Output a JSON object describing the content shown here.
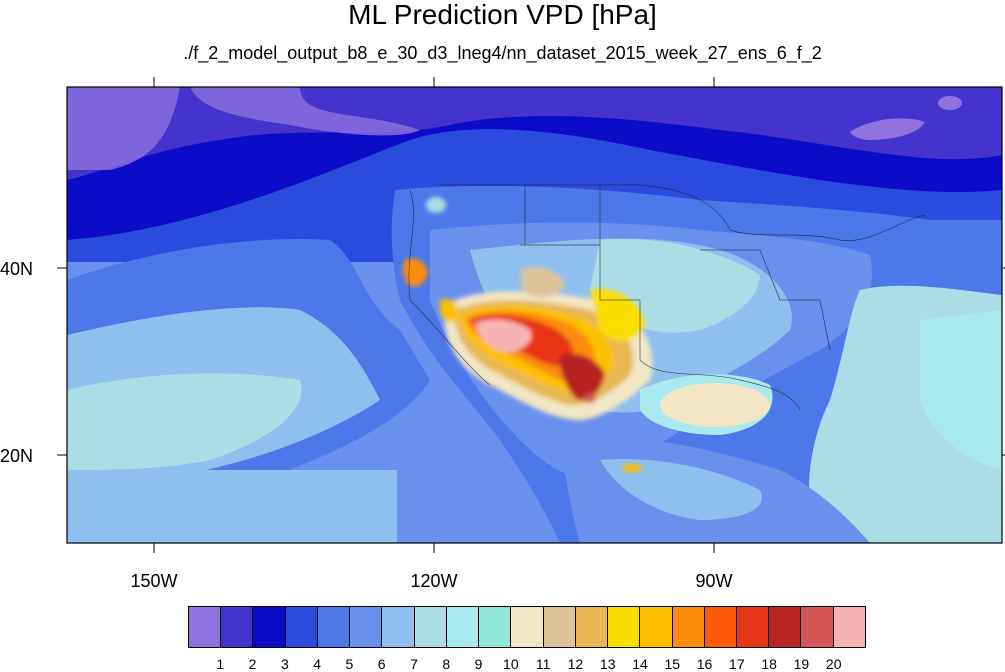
{
  "title": "ML Prediction VPD [hPa]",
  "subtitle": "./f_2_model_output_b8_e_30_d3_lneg4/nn_dataset_2015_week_27_ens_6_f_2",
  "map": {
    "variable": "VPD",
    "units": "hPa",
    "projection": "cylindrical equidistant",
    "lon_range": [
      -159,
      -60
    ],
    "lat_range": [
      10,
      59
    ],
    "lon_ticks": [
      {
        "label": "150W",
        "value": -150
      },
      {
        "label": "120W",
        "value": -120
      },
      {
        "label": "90W",
        "value": -90
      }
    ],
    "lat_ticks": [
      {
        "label": "40N",
        "value": 40
      },
      {
        "label": "20N",
        "value": 20
      }
    ]
  },
  "colorbar": {
    "labels": [
      "1",
      "2",
      "3",
      "4",
      "5",
      "6",
      "7",
      "8",
      "9",
      "10",
      "11",
      "12",
      "13",
      "14",
      "15",
      "16",
      "17",
      "18",
      "19",
      "20"
    ],
    "colors": [
      "#8f72de",
      "#4433cc",
      "#0c0cc8",
      "#2b4ade",
      "#4c78ea",
      "#6a90ee",
      "#8ebfee",
      "#acdde6",
      "#a8eaf0",
      "#92e8d8",
      "#f2e6c4",
      "#dec29a",
      "#e8b654",
      "#fade00",
      "#fcc000",
      "#fc8c0c",
      "#fc5a08",
      "#e83618",
      "#b82424",
      "#d45656",
      "#f8b4b4"
    ]
  }
}
